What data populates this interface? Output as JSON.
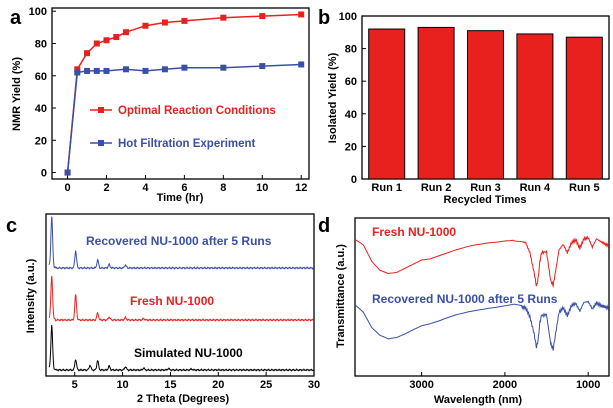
{
  "colors": {
    "red": "#e8211f",
    "blue": "#3a4fa8",
    "black": "#000000"
  },
  "chart_data": [
    {
      "panel": "a",
      "type": "line",
      "xlabel": "Time (hr)",
      "ylabel": "NMR Yield (%)",
      "xlim": [
        -0.8,
        12.4
      ],
      "ylim": [
        -4,
        102
      ],
      "xticks": [
        0,
        2,
        4,
        6,
        8,
        10,
        12
      ],
      "yticks": [
        0,
        20,
        40,
        60,
        80,
        100
      ],
      "legend_position": "center-right",
      "series": [
        {
          "name": "Optimal Reaction Conditions",
          "color": "#e8211f",
          "x": [
            0,
            0.5,
            1,
            1.5,
            2,
            2.5,
            3,
            4,
            5,
            6,
            8,
            10,
            12
          ],
          "y": [
            0,
            64,
            74,
            80,
            82,
            84,
            87,
            91,
            93,
            94,
            96,
            97,
            98
          ]
        },
        {
          "name": "Hot Filtration Experiment",
          "color": "#3a4fa8",
          "x": [
            0,
            0.5,
            1,
            1.5,
            2,
            3,
            4,
            5,
            6,
            8,
            10,
            12
          ],
          "y": [
            0,
            62,
            63,
            63,
            63,
            64,
            63,
            64,
            65,
            65,
            66,
            67
          ]
        }
      ]
    },
    {
      "panel": "b",
      "type": "bar",
      "xlabel": "Recycled Times",
      "ylabel": "Isolated Yield (%)",
      "ylim": [
        0,
        100
      ],
      "yticks": [
        0,
        20,
        40,
        60,
        80,
        100
      ],
      "categories": [
        "Run 1",
        "Run 2",
        "Run 3",
        "Run 4",
        "Run 5"
      ],
      "values": [
        92,
        93,
        91,
        89,
        87
      ],
      "color": "#e8211f"
    },
    {
      "panel": "c",
      "type": "line",
      "xlabel": "2 Theta (Degrees)",
      "ylabel": "Intensity (a.u.)",
      "xlim": [
        2,
        30
      ],
      "xticks": [
        5,
        10,
        15,
        20,
        25,
        30
      ],
      "series": [
        {
          "name": "Recovered NU-1000 after 5 Runs",
          "color": "#3a4fa8",
          "offset": 2,
          "peaks": [
            [
              2.6,
              1.0
            ],
            [
              5.1,
              0.34
            ],
            [
              7.4,
              0.16
            ],
            [
              8.6,
              0.07
            ],
            [
              10.3,
              0.06
            ]
          ]
        },
        {
          "name": "Fresh NU-1000",
          "color": "#e8211f",
          "offset": 1,
          "peaks": [
            [
              2.6,
              0.85
            ],
            [
              5.1,
              0.5
            ],
            [
              7.4,
              0.14
            ],
            [
              8.6,
              0.06
            ],
            [
              10.3,
              0.05
            ],
            [
              12.2,
              0.03
            ]
          ]
        },
        {
          "name": "Simulated NU-1000",
          "color": "#000000",
          "offset": 0,
          "peaks": [
            [
              2.6,
              0.9
            ],
            [
              5.1,
              0.22
            ],
            [
              6.6,
              0.1
            ],
            [
              7.4,
              0.2
            ],
            [
              8.6,
              0.08
            ],
            [
              10.3,
              0.07
            ],
            [
              12.2,
              0.04
            ],
            [
              14.8,
              0.03
            ],
            [
              17.2,
              0.02
            ]
          ]
        }
      ]
    },
    {
      "panel": "d",
      "type": "line",
      "xlabel": "Wavelength (nm)",
      "ylabel": "Transmittance (a.u.)",
      "xlim": [
        3800,
        750
      ],
      "xticks": [
        3000,
        2000,
        1000
      ],
      "series": [
        {
          "name": "Fresh NU-1000",
          "color": "#e8211f",
          "x": [
            3800,
            3700,
            3600,
            3500,
            3400,
            3300,
            3200,
            3100,
            3000,
            2900,
            2800,
            2600,
            2400,
            2200,
            2000,
            1900,
            1800,
            1750,
            1700,
            1650,
            1620,
            1600,
            1580,
            1560,
            1500,
            1450,
            1420,
            1400,
            1350,
            1300,
            1250,
            1200,
            1150,
            1100,
            1050,
            1000,
            950,
            900,
            850,
            800,
            750
          ],
          "y": [
            0.95,
            0.85,
            0.55,
            0.38,
            0.32,
            0.34,
            0.42,
            0.5,
            0.58,
            0.6,
            0.65,
            0.74,
            0.82,
            0.88,
            0.92,
            0.93,
            0.9,
            0.88,
            0.7,
            0.35,
            0.1,
            0.25,
            0.55,
            0.7,
            0.72,
            0.2,
            0.12,
            0.3,
            0.75,
            0.85,
            0.7,
            0.88,
            0.93,
            0.78,
            0.95,
            0.97,
            0.8,
            0.95,
            0.9,
            0.86,
            0.82
          ]
        },
        {
          "name": "Recovered NU-1000 after 5 Runs",
          "color": "#3a4fa8",
          "x": [
            3800,
            3700,
            3600,
            3500,
            3400,
            3300,
            3200,
            3100,
            3000,
            2900,
            2800,
            2600,
            2400,
            2200,
            2000,
            1900,
            1800,
            1750,
            1700,
            1650,
            1620,
            1600,
            1580,
            1560,
            1500,
            1450,
            1420,
            1400,
            1350,
            1300,
            1250,
            1200,
            1150,
            1100,
            1050,
            1000,
            950,
            900,
            850,
            800,
            750
          ],
          "y": [
            0.92,
            0.78,
            0.5,
            0.36,
            0.3,
            0.33,
            0.4,
            0.48,
            0.55,
            0.58,
            0.62,
            0.72,
            0.8,
            0.86,
            0.9,
            0.92,
            0.88,
            0.86,
            0.7,
            0.4,
            0.15,
            0.3,
            0.6,
            0.72,
            0.74,
            0.22,
            0.12,
            0.32,
            0.78,
            0.86,
            0.72,
            0.9,
            0.94,
            0.8,
            0.96,
            0.97,
            0.84,
            0.95,
            0.9,
            0.88,
            0.85
          ]
        }
      ]
    }
  ],
  "panels": {
    "a": {
      "letter": "a",
      "xlabel": "Time (hr)",
      "ylabel": "NMR Yield (%)",
      "legend": [
        "Optimal Reaction Conditions",
        "Hot Filtration Experiment"
      ]
    },
    "b": {
      "letter": "b",
      "xlabel": "Recycled Times",
      "ylabel": "Isolated Yield (%)"
    },
    "c": {
      "letter": "c",
      "xlabel": "2 Theta (Degrees)",
      "ylabel": "Intensity (a.u.)",
      "labels": [
        "Recovered NU-1000 after 5 Runs",
        "Fresh NU-1000",
        "Simulated NU-1000"
      ]
    },
    "d": {
      "letter": "d",
      "xlabel": "Wavelength (nm)",
      "ylabel": "Transmittance (a.u.)",
      "labels": [
        "Fresh NU-1000",
        "Recovered NU-1000 after 5 Runs"
      ]
    }
  }
}
